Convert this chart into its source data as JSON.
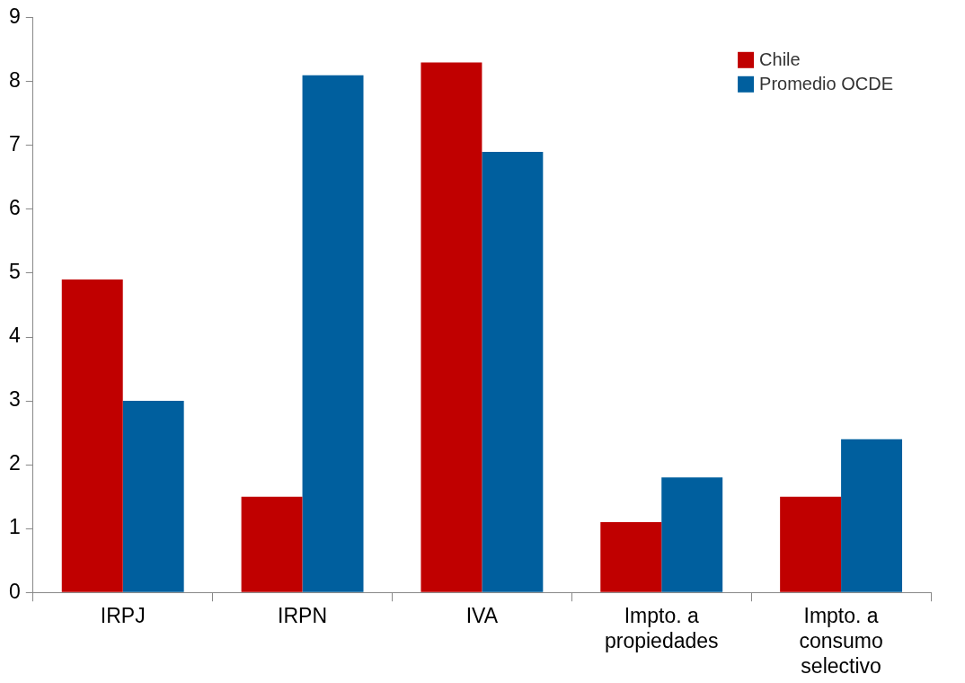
{
  "chart_data": {
    "type": "bar",
    "categories": [
      "IRPJ",
      "IRPN",
      "IVA",
      "Impto. a propiedades",
      "Impto. a consumo selectivo"
    ],
    "series": [
      {
        "name": "Chile",
        "color": "#c00000",
        "values": [
          4.9,
          1.5,
          8.3,
          1.1,
          1.5
        ]
      },
      {
        "name": "Promedio OCDE",
        "color": "#005f9e",
        "values": [
          3.0,
          8.1,
          6.9,
          1.8,
          2.4
        ]
      }
    ],
    "ylim": [
      0,
      9
    ],
    "yticks": [
      0,
      1,
      2,
      3,
      4,
      5,
      6,
      7,
      8,
      9
    ],
    "grid": false,
    "legend": "top right"
  }
}
